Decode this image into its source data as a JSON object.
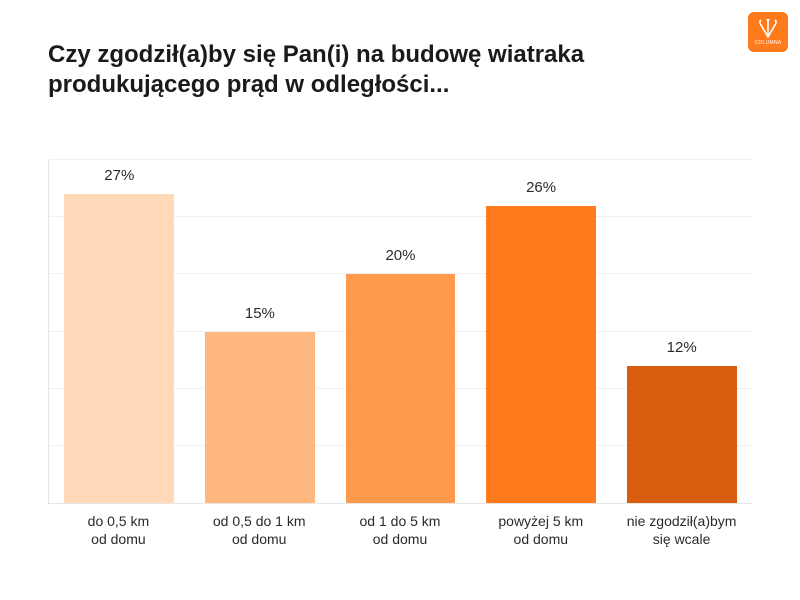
{
  "title": "Czy zgodził(a)by się Pan(i) na budowę wiatraka produkującego prąd w odległości...",
  "title_fontsize": 24,
  "logo": {
    "brand": "COLUMNA",
    "bg": "#ff7a1a",
    "fg": "#ffffff"
  },
  "chart": {
    "type": "bar",
    "background_color": "#ffffff",
    "grid_color": "#f0f0f0",
    "axis_color": "#e6e6e6",
    "ymax": 30,
    "ytick_step": 5,
    "bar_width": 0.78,
    "value_label_fontsize": 15,
    "x_label_fontsize": 14,
    "categories": [
      {
        "label_l1": "do 0,5 km",
        "label_l2": "od domu",
        "value": 27,
        "value_label": "27%",
        "color": "#ffd9b8"
      },
      {
        "label_l1": "od 0,5 do 1 km",
        "label_l2": "od domu",
        "value": 15,
        "value_label": "15%",
        "color": "#ffb980"
      },
      {
        "label_l1": "od 1 do 5 km",
        "label_l2": "od domu",
        "value": 20,
        "value_label": "20%",
        "color": "#ff9a4d"
      },
      {
        "label_l1": "powyżej 5 km",
        "label_l2": "od domu",
        "value": 26,
        "value_label": "26%",
        "color": "#ff7a1a"
      },
      {
        "label_l1": "nie zgodził(a)bym",
        "label_l2": "się wcale",
        "value": 12,
        "value_label": "12%",
        "color": "#d95d0e"
      }
    ]
  }
}
